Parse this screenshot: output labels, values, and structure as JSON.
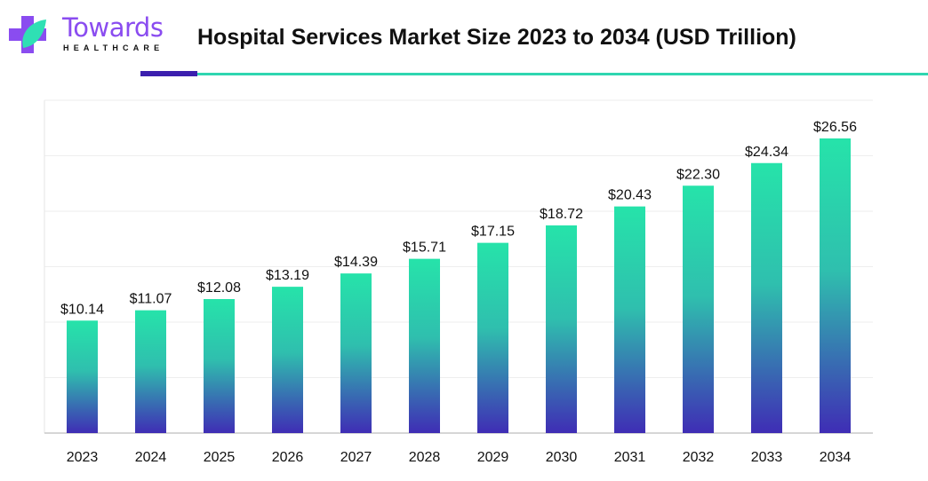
{
  "header": {
    "brand": "Towards",
    "brand_sub": "HEALTHCARE",
    "title": "Hospital Services Market Size 2023 to 2034 (USD Trillion)"
  },
  "colors": {
    "bar_top": "#26e3aa",
    "bar_bottom": "#3f2db5",
    "accent_purple": "#3b1fae",
    "accent_teal": "#2fd6b0"
  },
  "chart_data": {
    "type": "bar",
    "title": "Hospital Services Market Size 2023 to 2034 (USD Trillion)",
    "categories": [
      "2023",
      "2024",
      "2025",
      "2026",
      "2027",
      "2028",
      "2029",
      "2030",
      "2031",
      "2032",
      "2033",
      "2034"
    ],
    "values": [
      10.14,
      11.07,
      12.08,
      13.19,
      14.39,
      15.71,
      17.15,
      18.72,
      20.43,
      22.3,
      24.34,
      26.56
    ],
    "labels": [
      "$10.14",
      "$11.07",
      "$12.08",
      "$13.19",
      "$14.39",
      "$15.71",
      "$17.15",
      "$18.72",
      "$20.43",
      "$22.30",
      "$24.34",
      "$26.56"
    ],
    "ylim": [
      0,
      30
    ],
    "grid": true,
    "yticks_visible": false
  }
}
